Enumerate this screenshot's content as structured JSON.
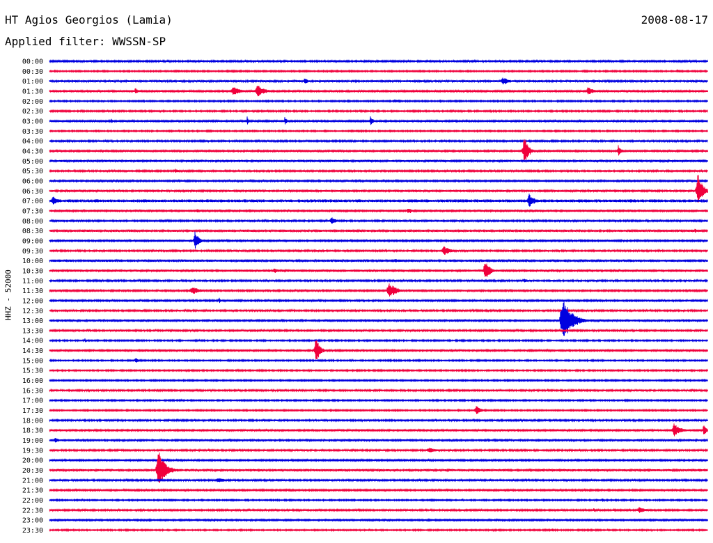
{
  "header": {
    "station": "HT Agios Georgios (Lamia)",
    "date": "2008-08-17",
    "filter": "Applied filter: WWSSN-SP"
  },
  "chart_data": {
    "type": "line",
    "title": "HT Agios Georgios (Lamia)",
    "ylabel": "HHZ - 52000",
    "colors": [
      "#0000e0",
      "#f0003c"
    ],
    "rows": [
      "00:00",
      "00:30",
      "01:00",
      "01:30",
      "02:00",
      "02:30",
      "03:00",
      "03:30",
      "04:00",
      "04:30",
      "05:00",
      "05:30",
      "06:00",
      "06:30",
      "07:00",
      "07:30",
      "08:00",
      "08:30",
      "09:00",
      "09:30",
      "10:00",
      "10:30",
      "11:00",
      "11:30",
      "12:00",
      "12:30",
      "13:00",
      "13:30",
      "14:00",
      "14:30",
      "15:00",
      "15:30",
      "16:00",
      "16:30",
      "17:00",
      "17:30",
      "18:00",
      "18:30",
      "19:00",
      "19:30",
      "20:00",
      "20:30",
      "21:00",
      "21:30",
      "22:00",
      "22:30",
      "23:00",
      "23:30"
    ],
    "x_range_minutes": [
      0,
      30
    ],
    "noise": [
      1.2,
      1.0,
      1.5,
      1.4,
      1.0,
      1.1,
      1.4,
      1.0,
      1.2,
      1.5,
      1.6,
      1.2,
      1.3,
      1.4,
      2.2,
      1.6,
      1.2,
      1.6,
      1.2,
      1.2,
      1.8,
      1.6,
      1.2,
      1.2,
      1.2,
      1.2,
      1.6,
      1.2,
      1.0,
      1.4,
      1.0,
      1.0,
      1.0,
      1.2,
      1.0,
      1.0,
      1.2,
      1.4,
      1.4,
      1.2,
      1.2,
      1.6,
      1.2,
      1.2,
      1.0,
      1.2,
      1.6,
      1.0
    ],
    "events": [
      {
        "row": 1,
        "minute": 5.8,
        "amp": 3,
        "dur": 0.6
      },
      {
        "row": 1,
        "minute": 28.6,
        "amp": 3,
        "dur": 0.3
      },
      {
        "row": 2,
        "minute": 11.6,
        "amp": 5,
        "dur": 0.4
      },
      {
        "row": 2,
        "minute": 20.6,
        "amp": 6,
        "dur": 0.9
      },
      {
        "row": 3,
        "minute": 3.9,
        "amp": 8,
        "dur": 0.15
      },
      {
        "row": 3,
        "minute": 8.3,
        "amp": 9,
        "dur": 0.8
      },
      {
        "row": 3,
        "minute": 9.4,
        "amp": 10,
        "dur": 0.9
      },
      {
        "row": 3,
        "minute": 24.5,
        "amp": 7,
        "dur": 0.7
      },
      {
        "row": 4,
        "minute": 15.7,
        "amp": 3,
        "dur": 0.5
      },
      {
        "row": 6,
        "minute": 2.8,
        "amp": 6,
        "dur": 0.1
      },
      {
        "row": 6,
        "minute": 9.0,
        "amp": 9,
        "dur": 0.1
      },
      {
        "row": 6,
        "minute": 10.7,
        "amp": 6,
        "dur": 0.3
      },
      {
        "row": 6,
        "minute": 14.6,
        "amp": 7,
        "dur": 0.4
      },
      {
        "row": 9,
        "minute": 21.6,
        "amp": 24,
        "dur": 0.5
      },
      {
        "row": 9,
        "minute": 25.9,
        "amp": 10,
        "dur": 0.35
      },
      {
        "row": 11,
        "minute": 5.7,
        "amp": 4,
        "dur": 0.4
      },
      {
        "row": 13,
        "minute": 29.5,
        "amp": 28,
        "dur": 0.6
      },
      {
        "row": 14,
        "minute": 0.1,
        "amp": 7,
        "dur": 0.7
      },
      {
        "row": 14,
        "minute": 21.8,
        "amp": 11,
        "dur": 0.7
      },
      {
        "row": 15,
        "minute": 6.7,
        "amp": 4,
        "dur": 0.2
      },
      {
        "row": 15,
        "minute": 16.3,
        "amp": 5,
        "dur": 0.6
      },
      {
        "row": 16,
        "minute": 12.8,
        "amp": 7,
        "dur": 0.5
      },
      {
        "row": 17,
        "minute": 29.4,
        "amp": 4,
        "dur": 0.3
      },
      {
        "row": 18,
        "minute": 6.6,
        "amp": 16,
        "dur": 0.4
      },
      {
        "row": 19,
        "minute": 17.9,
        "amp": 7,
        "dur": 0.9
      },
      {
        "row": 20,
        "minute": 15.7,
        "amp": 4,
        "dur": 0.6
      },
      {
        "row": 21,
        "minute": 10.2,
        "amp": 5,
        "dur": 0.5
      },
      {
        "row": 21,
        "minute": 19.8,
        "amp": 18,
        "dur": 0.6
      },
      {
        "row": 22,
        "minute": 21.6,
        "amp": 4,
        "dur": 0.5
      },
      {
        "row": 23,
        "minute": 6.4,
        "amp": 6,
        "dur": 1.2
      },
      {
        "row": 23,
        "minute": 15.4,
        "amp": 12,
        "dur": 1.0
      },
      {
        "row": 24,
        "minute": 7.7,
        "amp": 5,
        "dur": 0.3
      },
      {
        "row": 26,
        "minute": 23.3,
        "amp": 34,
        "dur": 1.2
      },
      {
        "row": 28,
        "minute": 1.6,
        "amp": 4,
        "dur": 0.1
      },
      {
        "row": 29,
        "minute": 12.1,
        "amp": 20,
        "dur": 0.5
      },
      {
        "row": 30,
        "minute": 3.9,
        "amp": 7,
        "dur": 0.2
      },
      {
        "row": 35,
        "minute": 19.4,
        "amp": 8,
        "dur": 0.6
      },
      {
        "row": 37,
        "minute": 28.4,
        "amp": 10,
        "dur": 0.9
      },
      {
        "row": 37,
        "minute": 29.8,
        "amp": 10,
        "dur": 0.3
      },
      {
        "row": 38,
        "minute": 0.2,
        "amp": 5,
        "dur": 0.5
      },
      {
        "row": 38,
        "minute": 4.2,
        "amp": 3,
        "dur": 0.1
      },
      {
        "row": 39,
        "minute": 17.2,
        "amp": 4,
        "dur": 1.2
      },
      {
        "row": 41,
        "minute": 4.9,
        "amp": 30,
        "dur": 0.9
      },
      {
        "row": 42,
        "minute": 7.6,
        "amp": 4,
        "dur": 1.0
      },
      {
        "row": 44,
        "minute": 25.2,
        "amp": 4,
        "dur": 0.1
      },
      {
        "row": 45,
        "minute": 24.8,
        "amp": 4,
        "dur": 0.1
      },
      {
        "row": 45,
        "minute": 26.8,
        "amp": 5,
        "dur": 1.0
      },
      {
        "row": 47,
        "minute": 22.9,
        "amp": 3,
        "dur": 0.1
      }
    ]
  }
}
